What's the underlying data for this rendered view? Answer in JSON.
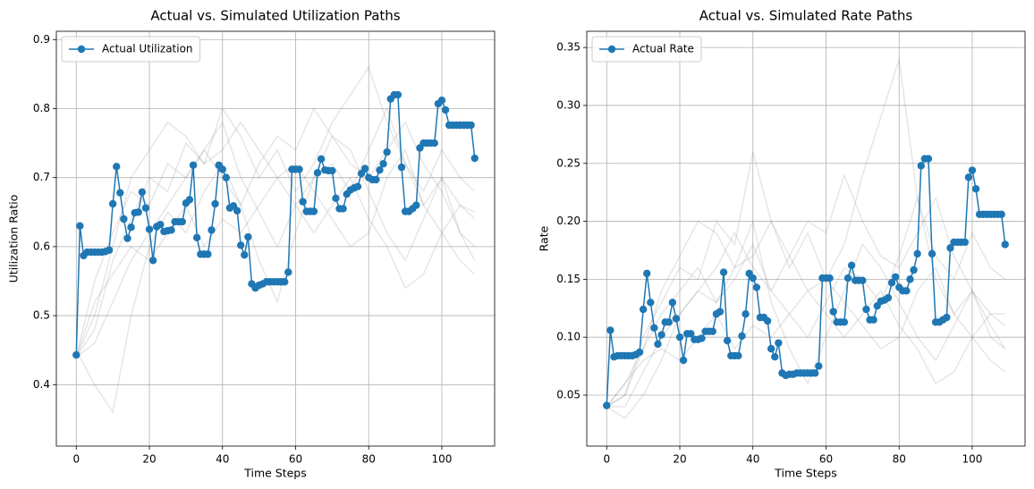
{
  "chart_data": [
    {
      "type": "line",
      "title": "Actual vs. Simulated Utilization Paths",
      "xlabel": "Time Steps",
      "ylabel": "Utilization Ratio",
      "xlim": [
        -5.45,
        114.45
      ],
      "ylim": [
        0.311,
        0.912
      ],
      "xticks": [
        0,
        20,
        40,
        60,
        80,
        100
      ],
      "yticks": [
        0.4,
        0.5,
        0.6,
        0.7,
        0.8,
        0.9
      ],
      "grid": true,
      "legend": "upper left",
      "series": [
        {
          "color": "gray",
          "x": [
            0,
            5,
            10,
            15,
            20,
            25,
            30,
            35,
            40,
            45,
            50,
            55,
            60,
            65,
            70,
            75,
            80,
            85,
            90,
            95,
            100,
            105,
            109
          ],
          "values": [
            0.44,
            0.55,
            0.62,
            0.68,
            0.66,
            0.72,
            0.7,
            0.74,
            0.78,
            0.7,
            0.65,
            0.6,
            0.66,
            0.7,
            0.72,
            0.68,
            0.74,
            0.8,
            0.72,
            0.66,
            0.7,
            0.62,
            0.6
          ]
        },
        {
          "color": "gray",
          "x": [
            0,
            5,
            10,
            15,
            20,
            25,
            30,
            35,
            40,
            45,
            50,
            55,
            60,
            65,
            70,
            75,
            80,
            85,
            90,
            95,
            100,
            105,
            109
          ],
          "values": [
            0.45,
            0.4,
            0.36,
            0.5,
            0.6,
            0.65,
            0.62,
            0.68,
            0.72,
            0.66,
            0.58,
            0.52,
            0.62,
            0.7,
            0.76,
            0.74,
            0.68,
            0.62,
            0.58,
            0.64,
            0.7,
            0.66,
            0.64
          ]
        },
        {
          "color": "gray",
          "x": [
            0,
            5,
            10,
            15,
            20,
            25,
            30,
            35,
            40,
            45,
            50,
            55,
            60,
            65,
            70,
            75,
            80,
            85,
            90,
            95,
            100,
            105,
            109
          ],
          "values": [
            0.44,
            0.48,
            0.58,
            0.64,
            0.7,
            0.68,
            0.75,
            0.72,
            0.8,
            0.76,
            0.7,
            0.74,
            0.68,
            0.72,
            0.78,
            0.82,
            0.86,
            0.78,
            0.72,
            0.68,
            0.74,
            0.7,
            0.68
          ]
        },
        {
          "color": "gray",
          "x": [
            0,
            5,
            10,
            15,
            20,
            25,
            30,
            35,
            40,
            45,
            50,
            55,
            60,
            65,
            70,
            75,
            80,
            85,
            90,
            95,
            100,
            105,
            109
          ],
          "values": [
            0.44,
            0.52,
            0.56,
            0.6,
            0.58,
            0.62,
            0.66,
            0.6,
            0.64,
            0.62,
            0.66,
            0.7,
            0.72,
            0.68,
            0.64,
            0.6,
            0.62,
            0.7,
            0.74,
            0.66,
            0.62,
            0.58,
            0.56
          ]
        },
        {
          "color": "gray",
          "x": [
            0,
            5,
            10,
            15,
            20,
            25,
            30,
            35,
            40,
            45,
            50,
            55,
            60,
            65,
            70,
            75,
            80,
            85,
            90,
            95,
            100,
            105,
            109
          ],
          "values": [
            0.44,
            0.5,
            0.6,
            0.7,
            0.74,
            0.78,
            0.76,
            0.72,
            0.74,
            0.78,
            0.74,
            0.7,
            0.66,
            0.62,
            0.66,
            0.7,
            0.64,
            0.6,
            0.54,
            0.56,
            0.62,
            0.66,
            0.65
          ]
        },
        {
          "color": "gray",
          "x": [
            0,
            5,
            10,
            15,
            20,
            25,
            30,
            35,
            40,
            45,
            50,
            55,
            60,
            65,
            70,
            75,
            80,
            85,
            90,
            95,
            100,
            105,
            109
          ],
          "values": [
            0.44,
            0.46,
            0.52,
            0.58,
            0.62,
            0.66,
            0.7,
            0.74,
            0.7,
            0.66,
            0.72,
            0.76,
            0.74,
            0.8,
            0.76,
            0.72,
            0.7,
            0.74,
            0.78,
            0.72,
            0.68,
            0.62,
            0.58
          ]
        },
        {
          "name": "Actual Utilization",
          "color": "#1f77b4",
          "markers": true,
          "x": [
            0,
            1,
            2,
            3,
            4,
            5,
            6,
            7,
            8,
            9,
            10,
            11,
            12,
            13,
            14,
            15,
            16,
            17,
            18,
            19,
            20,
            21,
            22,
            23,
            24,
            25,
            26,
            27,
            28,
            29,
            30,
            31,
            32,
            33,
            34,
            35,
            36,
            37,
            38,
            39,
            40,
            41,
            42,
            43,
            44,
            45,
            46,
            47,
            48,
            49,
            50,
            51,
            52,
            53,
            54,
            55,
            56,
            57,
            58,
            59,
            60,
            61,
            62,
            63,
            64,
            65,
            66,
            67,
            68,
            69,
            70,
            71,
            72,
            73,
            74,
            75,
            76,
            77,
            78,
            79,
            80,
            81,
            82,
            83,
            84,
            85,
            86,
            87,
            88,
            89,
            90,
            91,
            92,
            93,
            94,
            95,
            96,
            97,
            98,
            99,
            100,
            101,
            102,
            103,
            104,
            105,
            106,
            107,
            108,
            109
          ],
          "values": [
            0.443,
            0.63,
            0.587,
            0.592,
            0.592,
            0.592,
            0.592,
            0.592,
            0.593,
            0.595,
            0.662,
            0.716,
            0.678,
            0.64,
            0.612,
            0.628,
            0.649,
            0.65,
            0.679,
            0.656,
            0.625,
            0.58,
            0.629,
            0.632,
            0.622,
            0.623,
            0.624,
            0.636,
            0.636,
            0.636,
            0.663,
            0.668,
            0.718,
            0.613,
            0.589,
            0.589,
            0.589,
            0.624,
            0.662,
            0.718,
            0.712,
            0.7,
            0.656,
            0.659,
            0.652,
            0.602,
            0.588,
            0.614,
            0.546,
            0.54,
            0.544,
            0.546,
            0.549,
            0.549,
            0.549,
            0.549,
            0.549,
            0.549,
            0.563,
            0.712,
            0.712,
            0.712,
            0.665,
            0.651,
            0.651,
            0.651,
            0.707,
            0.727,
            0.711,
            0.71,
            0.71,
            0.67,
            0.655,
            0.655,
            0.676,
            0.682,
            0.685,
            0.687,
            0.706,
            0.713,
            0.7,
            0.697,
            0.697,
            0.711,
            0.72,
            0.737,
            0.814,
            0.82,
            0.82,
            0.715,
            0.651,
            0.651,
            0.655,
            0.66,
            0.743,
            0.75,
            0.75,
            0.75,
            0.75,
            0.807,
            0.812,
            0.798,
            0.776,
            0.776,
            0.776,
            0.776,
            0.776,
            0.776,
            0.776,
            0.728
          ]
        }
      ]
    },
    {
      "type": "line",
      "title": "Actual vs. Simulated Rate Paths",
      "xlabel": "Time Steps",
      "ylabel": "Rate",
      "xlim": [
        -5.45,
        114.45
      ],
      "ylim": [
        0.006,
        0.364
      ],
      "xticks": [
        0,
        20,
        40,
        60,
        80,
        100
      ],
      "yticks": [
        0.05,
        {
          "value": 0.1,
          "label": "0.10"
        },
        0.15,
        {
          "value": 0.2,
          "label": "0.20"
        },
        0.25,
        {
          "value": 0.3,
          "label": "0.30"
        },
        0.35
      ],
      "grid": true,
      "legend": "upper left",
      "series": [
        {
          "color": "gray",
          "x": [
            0,
            5,
            10,
            15,
            20,
            25,
            30,
            35,
            40,
            45,
            50,
            55,
            60,
            65,
            70,
            75,
            80,
            85,
            90,
            95,
            100,
            105,
            109
          ],
          "values": [
            0.04,
            0.06,
            0.09,
            0.12,
            0.14,
            0.16,
            0.13,
            0.15,
            0.18,
            0.14,
            0.12,
            0.1,
            0.13,
            0.16,
            0.15,
            0.13,
            0.17,
            0.22,
            0.15,
            0.12,
            0.14,
            0.1,
            0.09
          ]
        },
        {
          "color": "gray",
          "x": [
            0,
            5,
            10,
            15,
            20,
            25,
            30,
            35,
            40,
            45,
            50,
            55,
            60,
            65,
            70,
            75,
            80,
            85,
            90,
            95,
            100,
            105,
            109
          ],
          "values": [
            0.04,
            0.03,
            0.05,
            0.08,
            0.12,
            0.14,
            0.13,
            0.16,
            0.2,
            0.13,
            0.09,
            0.06,
            0.1,
            0.14,
            0.18,
            0.16,
            0.13,
            0.1,
            0.08,
            0.11,
            0.14,
            0.12,
            0.11
          ]
        },
        {
          "color": "gray",
          "x": [
            0,
            5,
            10,
            15,
            20,
            25,
            30,
            35,
            40,
            45,
            50,
            55,
            60,
            65,
            70,
            75,
            80,
            85,
            90,
            95,
            100,
            105,
            109
          ],
          "values": [
            0.04,
            0.05,
            0.1,
            0.13,
            0.16,
            0.15,
            0.2,
            0.18,
            0.26,
            0.2,
            0.16,
            0.19,
            0.15,
            0.18,
            0.24,
            0.29,
            0.34,
            0.22,
            0.17,
            0.15,
            0.19,
            0.16,
            0.15
          ]
        },
        {
          "color": "gray",
          "x": [
            0,
            5,
            10,
            15,
            20,
            25,
            30,
            35,
            40,
            45,
            50,
            55,
            60,
            65,
            70,
            75,
            80,
            85,
            90,
            95,
            100,
            105,
            109
          ],
          "values": [
            0.04,
            0.06,
            0.08,
            0.09,
            0.08,
            0.1,
            0.12,
            0.09,
            0.11,
            0.1,
            0.12,
            0.14,
            0.15,
            0.13,
            0.11,
            0.09,
            0.1,
            0.14,
            0.16,
            0.12,
            0.1,
            0.08,
            0.07
          ]
        },
        {
          "color": "gray",
          "x": [
            0,
            5,
            10,
            15,
            20,
            25,
            30,
            35,
            40,
            45,
            50,
            55,
            60,
            65,
            70,
            75,
            80,
            85,
            90,
            95,
            100,
            105,
            109
          ],
          "values": [
            0.04,
            0.05,
            0.09,
            0.14,
            0.17,
            0.2,
            0.19,
            0.16,
            0.17,
            0.2,
            0.17,
            0.14,
            0.12,
            0.1,
            0.12,
            0.14,
            0.11,
            0.09,
            0.06,
            0.07,
            0.1,
            0.12,
            0.12
          ]
        },
        {
          "color": "gray",
          "x": [
            0,
            5,
            10,
            15,
            20,
            25,
            30,
            35,
            40,
            45,
            50,
            55,
            60,
            65,
            70,
            75,
            80,
            85,
            90,
            95,
            100,
            105,
            109
          ],
          "values": [
            0.04,
            0.04,
            0.07,
            0.1,
            0.12,
            0.14,
            0.16,
            0.19,
            0.16,
            0.14,
            0.17,
            0.2,
            0.19,
            0.24,
            0.2,
            0.17,
            0.16,
            0.19,
            0.22,
            0.17,
            0.14,
            0.11,
            0.09
          ]
        },
        {
          "name": "Actual Rate",
          "color": "#1f77b4",
          "markers": true,
          "x": [
            0,
            1,
            2,
            3,
            4,
            5,
            6,
            7,
            8,
            9,
            10,
            11,
            12,
            13,
            14,
            15,
            16,
            17,
            18,
            19,
            20,
            21,
            22,
            23,
            24,
            25,
            26,
            27,
            28,
            29,
            30,
            31,
            32,
            33,
            34,
            35,
            36,
            37,
            38,
            39,
            40,
            41,
            42,
            43,
            44,
            45,
            46,
            47,
            48,
            49,
            50,
            51,
            52,
            53,
            54,
            55,
            56,
            57,
            58,
            59,
            60,
            61,
            62,
            63,
            64,
            65,
            66,
            67,
            68,
            69,
            70,
            71,
            72,
            73,
            74,
            75,
            76,
            77,
            78,
            79,
            80,
            81,
            82,
            83,
            84,
            85,
            86,
            87,
            88,
            89,
            90,
            91,
            92,
            93,
            94,
            95,
            96,
            97,
            98,
            99,
            100,
            101,
            102,
            103,
            104,
            105,
            106,
            107,
            108,
            109
          ],
          "values": [
            0.041,
            0.106,
            0.083,
            0.084,
            0.084,
            0.084,
            0.084,
            0.084,
            0.085,
            0.087,
            0.124,
            0.155,
            0.13,
            0.108,
            0.094,
            0.102,
            0.113,
            0.113,
            0.13,
            0.116,
            0.1,
            0.08,
            0.103,
            0.103,
            0.098,
            0.098,
            0.099,
            0.105,
            0.105,
            0.105,
            0.12,
            0.122,
            0.156,
            0.097,
            0.084,
            0.084,
            0.084,
            0.101,
            0.12,
            0.155,
            0.151,
            0.143,
            0.117,
            0.117,
            0.114,
            0.09,
            0.083,
            0.095,
            0.069,
            0.067,
            0.068,
            0.068,
            0.069,
            0.069,
            0.069,
            0.069,
            0.069,
            0.069,
            0.075,
            0.151,
            0.151,
            0.151,
            0.122,
            0.113,
            0.113,
            0.113,
            0.151,
            0.162,
            0.149,
            0.149,
            0.149,
            0.124,
            0.115,
            0.115,
            0.127,
            0.131,
            0.132,
            0.134,
            0.147,
            0.152,
            0.143,
            0.14,
            0.14,
            0.15,
            0.158,
            0.172,
            0.248,
            0.254,
            0.254,
            0.172,
            0.113,
            0.113,
            0.115,
            0.117,
            0.177,
            0.182,
            0.182,
            0.182,
            0.182,
            0.238,
            0.244,
            0.228,
            0.206,
            0.206,
            0.206,
            0.206,
            0.206,
            0.206,
            0.206,
            0.18
          ]
        }
      ]
    }
  ]
}
